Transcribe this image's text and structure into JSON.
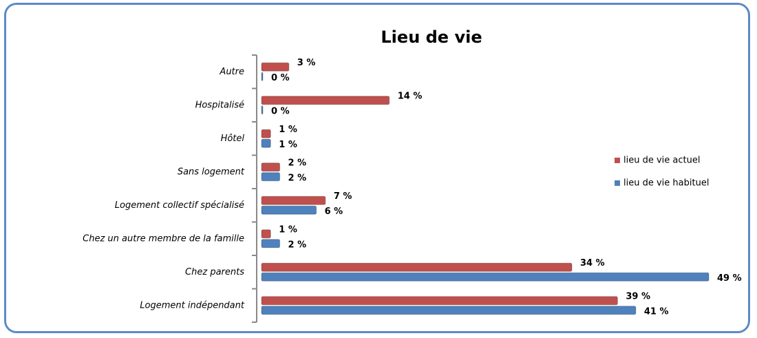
{
  "chart_data": {
    "type": "hbar",
    "title": "Lieu de vie",
    "categories": [
      "Autre",
      "Hospitalisé",
      "Hôtel",
      "Sans logement",
      "Logement collectif spécialisé",
      "Chez un autre membre de la famille",
      "Chez parents",
      "Logement indépendant"
    ],
    "series": [
      {
        "name": "lieu de vie actuel",
        "color": "#c0504d",
        "values": [
          3,
          14,
          1,
          2,
          7,
          1,
          34,
          39
        ],
        "value_labels": [
          "3 %",
          "14 %",
          "1 %",
          "2 %",
          "7 %",
          "1 %",
          "34 %",
          "39 %"
        ]
      },
      {
        "name": "lieu de vie habituel",
        "color": "#4f81bd",
        "values": [
          0,
          0,
          1,
          2,
          6,
          2,
          49,
          41
        ],
        "value_labels": [
          "0 %",
          "0 %",
          "1 %",
          "2 %",
          "6 %",
          "2 %",
          "49 %",
          "41 %"
        ]
      }
    ],
    "legend": "right"
  }
}
